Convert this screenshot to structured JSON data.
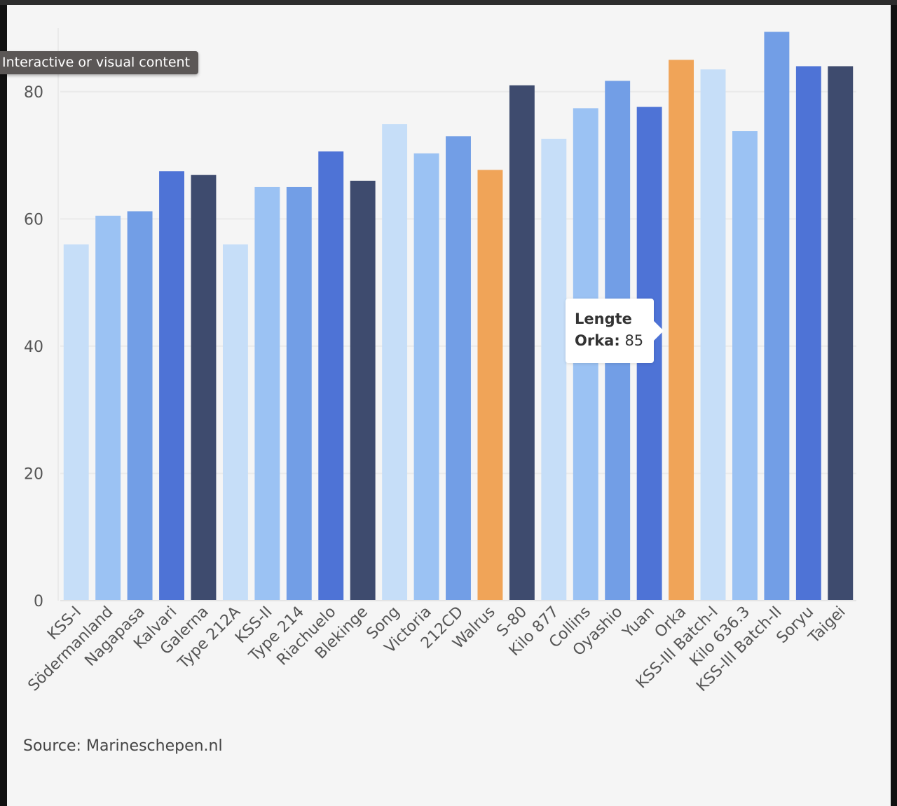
{
  "overlay_label": "Interactive or visual content",
  "source_text": "Source: Marineschepen.nl",
  "tooltip": {
    "title": "Lengte",
    "label": "Orka:",
    "value": "85"
  },
  "colors": {
    "pale_blue": "#c6def8",
    "light_blue": "#9bc2f3",
    "mid_blue": "#729ee6",
    "royal_blue": "#4e73d6",
    "navy": "#3e4b6e",
    "highlight_orange": "#f0a458"
  },
  "chart_data": {
    "type": "bar",
    "title": "",
    "xlabel": "",
    "ylabel": "",
    "ylim": [
      0,
      90
    ],
    "yticks": [
      0,
      20,
      40,
      60,
      80
    ],
    "grid": true,
    "highlighted": "Orka",
    "categories": [
      "KSS-I",
      "Södermanland",
      "Nagapasa",
      "Kalvari",
      "Galerna",
      "Type 212A",
      "KSS-II",
      "Type 214",
      "Riachuelo",
      "Blekinge",
      "Song",
      "Victoria",
      "212CD",
      "Walrus",
      "S-80",
      "Kilo 877",
      "Collins",
      "Oyashio",
      "Yuan",
      "Orka",
      "KSS-III Batch-I",
      "Kilo 636.3",
      "KSS-III Batch-II",
      "Soryu",
      "Taigei"
    ],
    "values": [
      56,
      60.5,
      61.2,
      67.5,
      66.9,
      56,
      65,
      65,
      70.6,
      66,
      74.9,
      70.3,
      73,
      67.7,
      81,
      72.6,
      77.4,
      81.7,
      77.6,
      85,
      83.5,
      73.8,
      89.4,
      84,
      84
    ],
    "bar_colors": [
      "#c6def8",
      "#9bc2f3",
      "#729ee6",
      "#4e73d6",
      "#3e4b6e",
      "#c6def8",
      "#9bc2f3",
      "#729ee6",
      "#4e73d6",
      "#3e4b6e",
      "#c6def8",
      "#9bc2f3",
      "#729ee6",
      "#f0a458",
      "#3e4b6e",
      "#c6def8",
      "#9bc2f3",
      "#729ee6",
      "#4e73d6",
      "#f0a458",
      "#c6def8",
      "#9bc2f3",
      "#729ee6",
      "#4e73d6",
      "#3e4b6e"
    ]
  }
}
